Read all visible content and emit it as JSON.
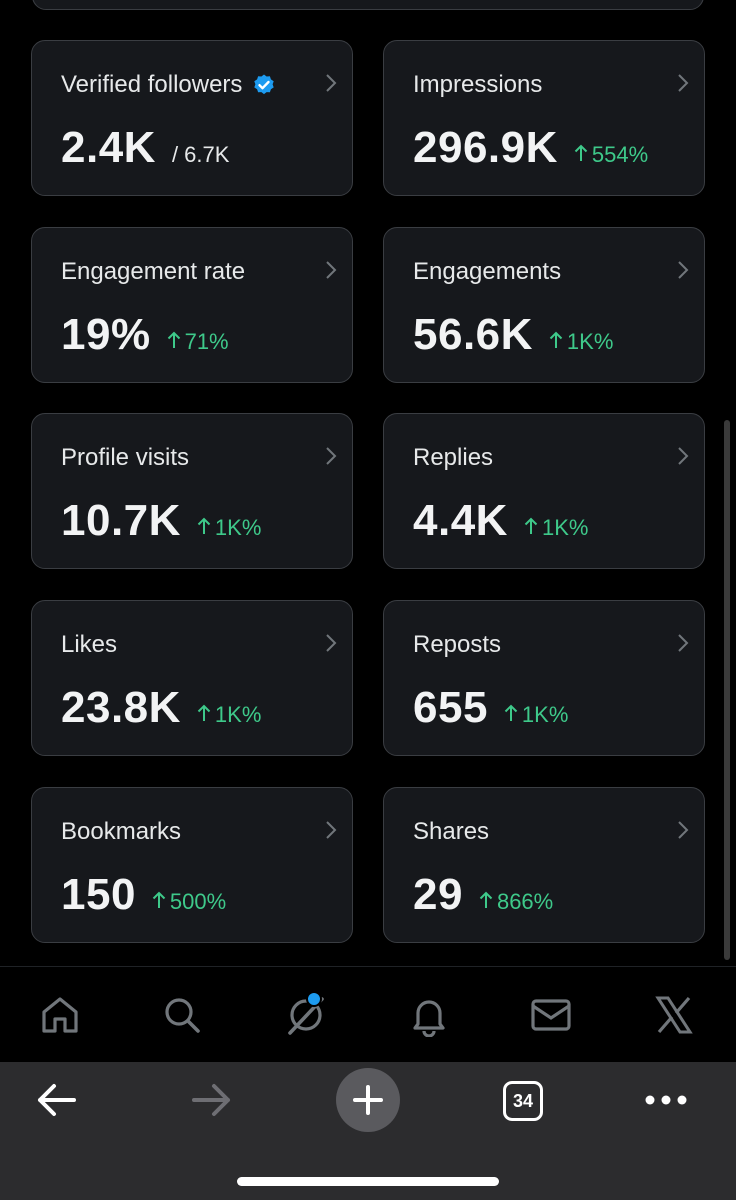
{
  "cards": [
    {
      "label": "Verified followers",
      "value": "2.4K",
      "total": "/ 6.7K",
      "verified": true
    },
    {
      "label": "Impressions",
      "value": "296.9K",
      "change": "554%"
    },
    {
      "label": "Engagement rate",
      "value": "19%",
      "change": "71%"
    },
    {
      "label": "Engagements",
      "value": "56.6K",
      "change": "1K%"
    },
    {
      "label": "Profile visits",
      "value": "10.7K",
      "change": "1K%"
    },
    {
      "label": "Replies",
      "value": "4.4K",
      "change": "1K%"
    },
    {
      "label": "Likes",
      "value": "23.8K",
      "change": "1K%"
    },
    {
      "label": "Reposts",
      "value": "655",
      "change": "1K%"
    },
    {
      "label": "Bookmarks",
      "value": "150",
      "change": "500%"
    },
    {
      "label": "Shares",
      "value": "29",
      "change": "866%"
    }
  ],
  "nav": {
    "items": [
      "home-icon",
      "search-icon",
      "grok-icon",
      "notifications-icon",
      "messages-icon",
      "x-logo-icon"
    ],
    "grok_has_badge": true
  },
  "browser": {
    "tab_count": "34",
    "buttons": [
      "back-arrow-icon",
      "forward-arrow-icon",
      "new-tab-plus-icon",
      "tabs-icon",
      "more-icon"
    ]
  },
  "colors": {
    "background": "#000000",
    "card": "#16181c",
    "card_border": "#3a3d42",
    "positive": "#3ec98a",
    "verified": "#1d9bf0",
    "browser_bar": "#2c2c2e"
  }
}
